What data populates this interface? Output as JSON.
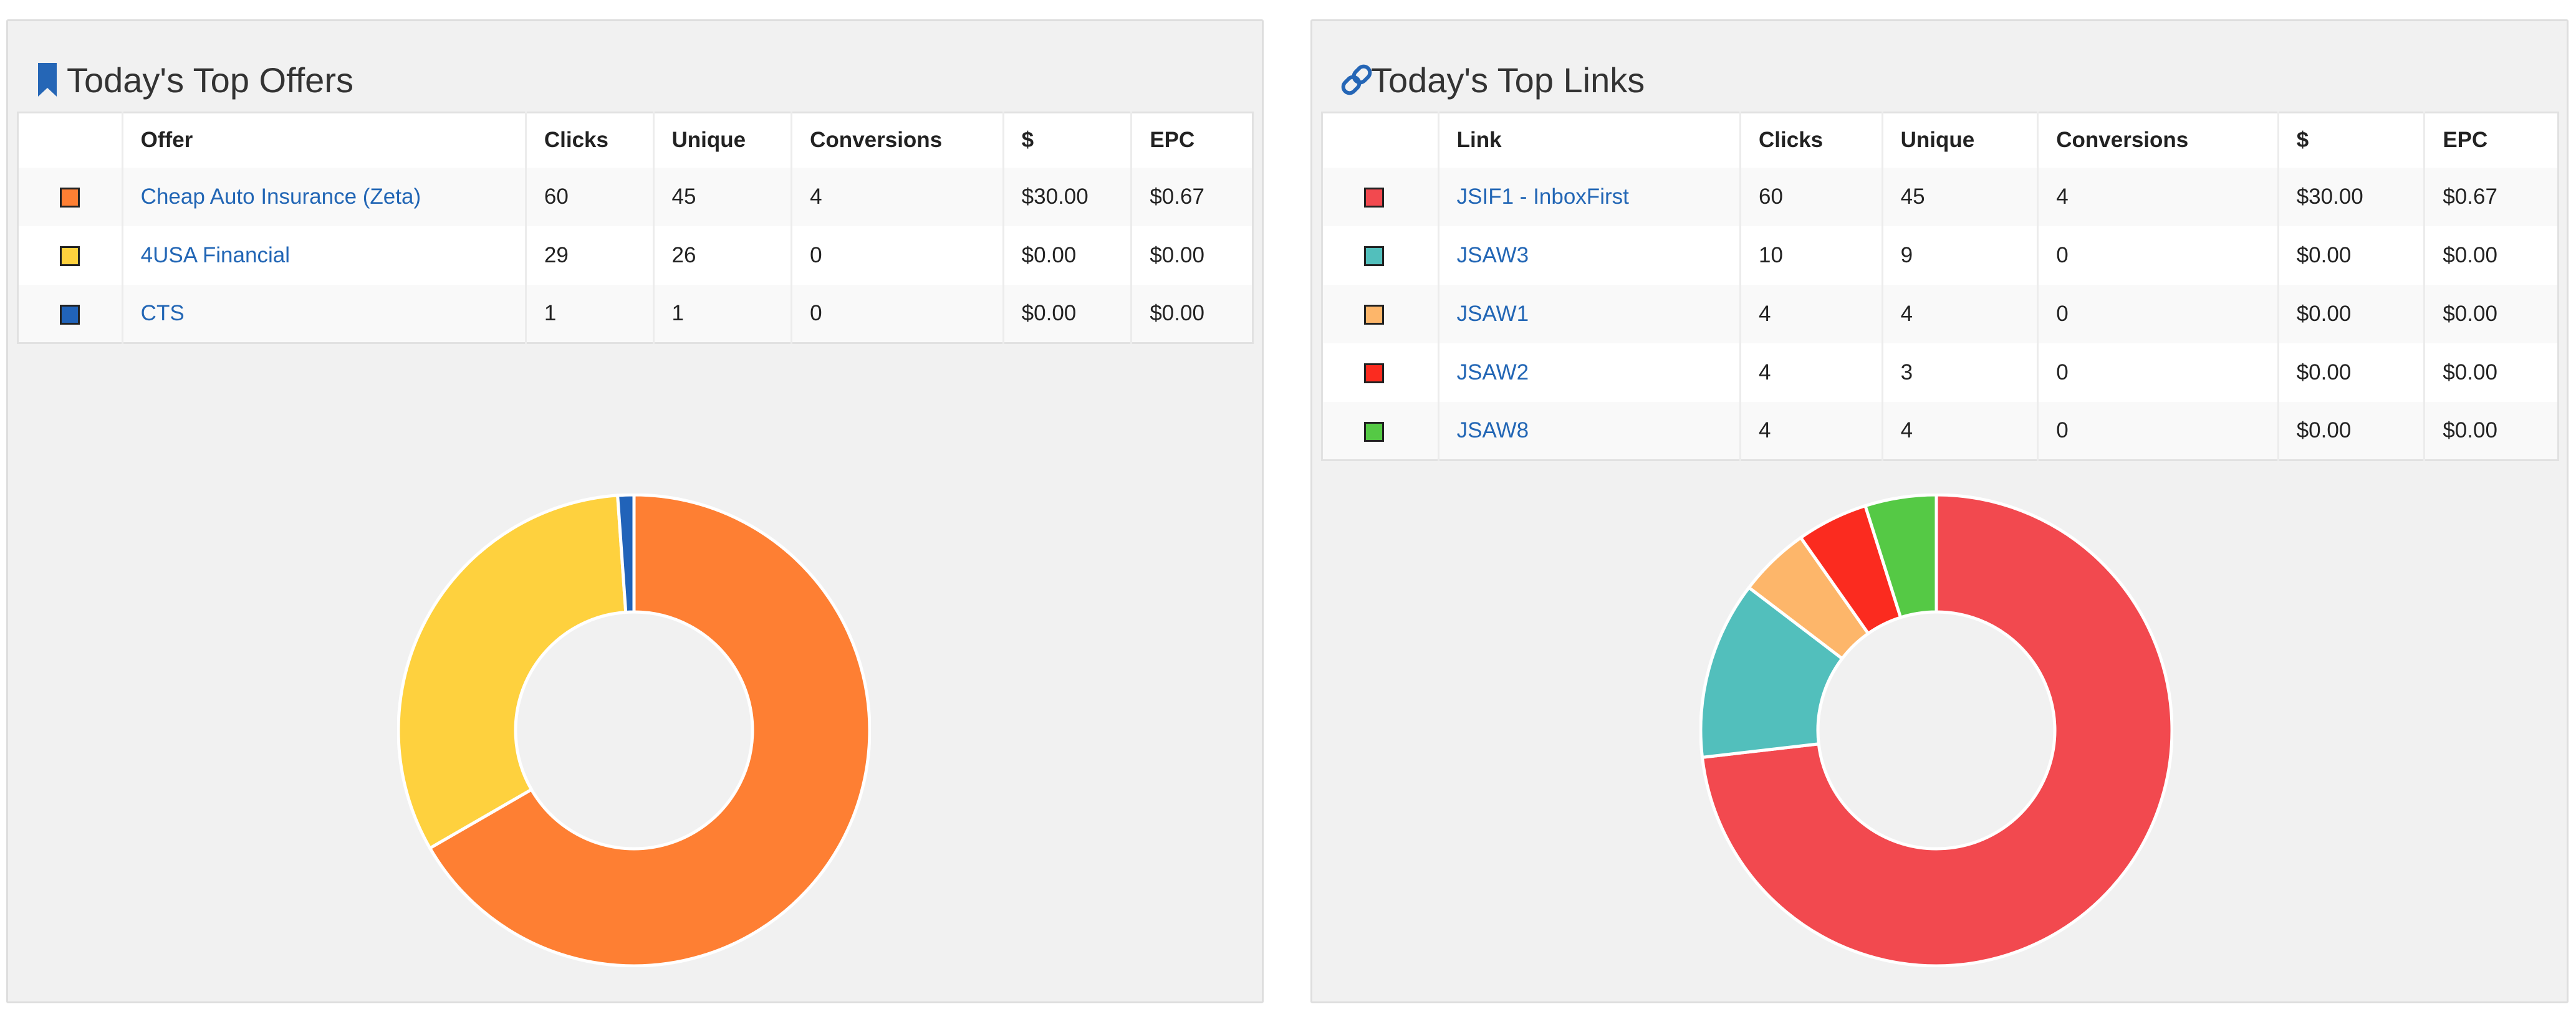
{
  "offers_panel": {
    "title": "Today's Top Offers",
    "icon": "bookmark-icon",
    "columns": [
      "",
      "Offer",
      "Clicks",
      "Unique",
      "Conversions",
      "$",
      "EPC"
    ],
    "rows": [
      {
        "color": "#fe7f33",
        "name": "Cheap Auto Insurance (Zeta)",
        "clicks": "60",
        "unique": "45",
        "conversions": "4",
        "revenue": "$30.00",
        "epc": "$0.67"
      },
      {
        "color": "#fed13e",
        "name": "4USA Financial",
        "clicks": "29",
        "unique": "26",
        "conversions": "0",
        "revenue": "$0.00",
        "epc": "$0.00"
      },
      {
        "color": "#2163b9",
        "name": "CTS",
        "clicks": "1",
        "unique": "1",
        "conversions": "0",
        "revenue": "$0.00",
        "epc": "$0.00"
      }
    ]
  },
  "links_panel": {
    "title": "Today's Top Links",
    "icon": "link-icon",
    "columns": [
      "",
      "Link",
      "Clicks",
      "Unique",
      "Conversions",
      "$",
      "EPC"
    ],
    "rows": [
      {
        "color": "#f2494f",
        "name": "JSIF1 - InboxFirst",
        "clicks": "60",
        "unique": "45",
        "conversions": "4",
        "revenue": "$30.00",
        "epc": "$0.67"
      },
      {
        "color": "#52bfbc",
        "name": "JSAW3",
        "clicks": "10",
        "unique": "9",
        "conversions": "0",
        "revenue": "$0.00",
        "epc": "$0.00"
      },
      {
        "color": "#fdb66a",
        "name": "JSAW1",
        "clicks": "4",
        "unique": "4",
        "conversions": "0",
        "revenue": "$0.00",
        "epc": "$0.00"
      },
      {
        "color": "#fb2b1f",
        "name": "JSAW2",
        "clicks": "4",
        "unique": "3",
        "conversions": "0",
        "revenue": "$0.00",
        "epc": "$0.00"
      },
      {
        "color": "#55c945",
        "name": "JSAW8",
        "clicks": "4",
        "unique": "4",
        "conversions": "0",
        "revenue": "$0.00",
        "epc": "$0.00"
      }
    ]
  },
  "chart_data": [
    {
      "type": "pie",
      "style": "donut",
      "title": "",
      "categories": [
        "Cheap Auto Insurance (Zeta)",
        "4USA Financial",
        "CTS"
      ],
      "values": [
        60,
        29,
        1
      ],
      "colors": [
        "#fe7f33",
        "#fed13e",
        "#2163b9"
      ]
    },
    {
      "type": "pie",
      "style": "donut",
      "title": "",
      "categories": [
        "JSIF1 - InboxFirst",
        "JSAW3",
        "JSAW1",
        "JSAW2",
        "JSAW8"
      ],
      "values": [
        60,
        10,
        4,
        4,
        4
      ],
      "colors": [
        "#f2494f",
        "#52bfbc",
        "#fdb66a",
        "#fb2b1f",
        "#55c945"
      ]
    }
  ]
}
